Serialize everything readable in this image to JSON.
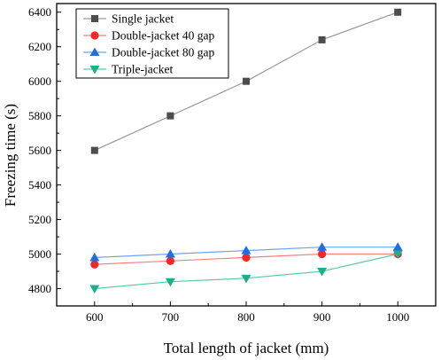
{
  "chart_data": {
    "type": "line",
    "xlabel": "Total length of jacket (mm)",
    "ylabel": "Freezing time (s)",
    "x": [
      600,
      700,
      800,
      900,
      1000
    ],
    "xlim": [
      550,
      1050
    ],
    "ylim": [
      4700,
      6450
    ],
    "xticks": [
      "600",
      "700",
      "800",
      "900",
      "1000"
    ],
    "yticks": [
      "4800",
      "5000",
      "5200",
      "5400",
      "5600",
      "5800",
      "6000",
      "6200",
      "6400"
    ],
    "grid": false,
    "legend_position": "top-left",
    "series": [
      {
        "name": "Single jacket",
        "values": [
          5600,
          5800,
          6000,
          6240,
          6400
        ],
        "color": "#4d4d4d",
        "line_color": "#9a9a9a",
        "marker": "square"
      },
      {
        "name": "Double-jacket 40 gap",
        "values": [
          4940,
          4960,
          4980,
          5000,
          5000
        ],
        "color": "#f02828",
        "line_color": "#f58080",
        "marker": "circle"
      },
      {
        "name": "Double-jacket 80 gap",
        "values": [
          4980,
          5000,
          5020,
          5040,
          5040
        ],
        "color": "#1f6fe0",
        "line_color": "#6ea4ee",
        "marker": "triangle-up"
      },
      {
        "name": "Triple-jacket",
        "values": [
          4800,
          4840,
          4860,
          4900,
          5000
        ],
        "color": "#1fae8a",
        "line_color": "#5cc9a6",
        "marker": "triangle-down"
      }
    ]
  }
}
